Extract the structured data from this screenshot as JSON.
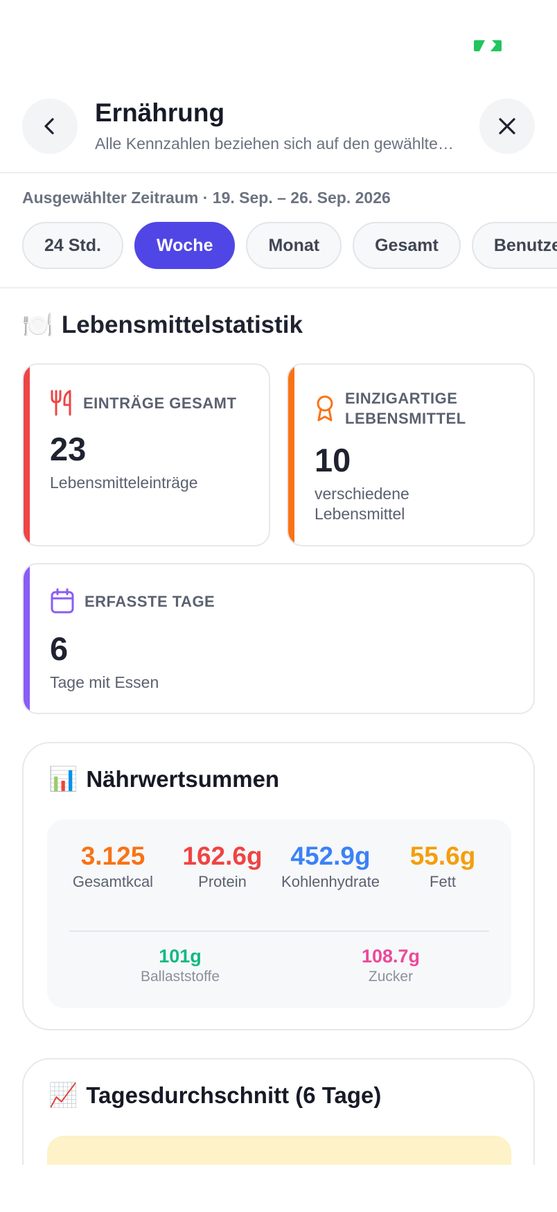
{
  "header": {
    "title": "Ernährung",
    "subtitle": "Alle Kennzahlen beziehen sich auf den gewählten Zeitraum"
  },
  "period": {
    "label": "Ausgewählter Zeitraum · 19. Sep. – 26. Sep. 2026",
    "options": [
      "24 Std.",
      "Woche",
      "Monat",
      "Gesamt",
      "Benutzerdefiniert"
    ],
    "selected": "Woche"
  },
  "food_stats": {
    "title": "Lebensmittelstatistik",
    "cards": [
      {
        "label": "EINTRÄGE GESAMT",
        "value": "23",
        "desc": "Lebensmitteleinträge",
        "color": "#ef4444",
        "icon": "fork-knife-icon"
      },
      {
        "label": "EINZIGARTIGE LEBENSMITTEL",
        "value": "10",
        "desc": "verschiedene Lebensmittel",
        "color": "#f97316",
        "icon": "award-icon"
      },
      {
        "label": "ERFASSTE TAGE",
        "value": "6",
        "desc": "Tage mit Essen",
        "color": "#8b5cf6",
        "icon": "calendar-icon"
      }
    ]
  },
  "nutrition_sums": {
    "title": "Nährwertsummen",
    "metrics": [
      {
        "value": "3.125",
        "label": "Gesamtkcal",
        "color": "#f97316"
      },
      {
        "value": "162.6g",
        "label": "Protein",
        "color": "#ef4444"
      },
      {
        "value": "452.9g",
        "label": "Kohlenhydrate",
        "color": "#3b82f6"
      },
      {
        "value": "55.6g",
        "label": "Fett",
        "color": "#f59e0b"
      }
    ],
    "secondary": [
      {
        "value": "101g",
        "label": "Ballaststoffe",
        "color": "#10b981"
      },
      {
        "value": "108.7g",
        "label": "Zucker",
        "color": "#ec4899"
      }
    ]
  },
  "daily_average": {
    "title": "Tagesdurchschnitt (6 Tage)"
  }
}
